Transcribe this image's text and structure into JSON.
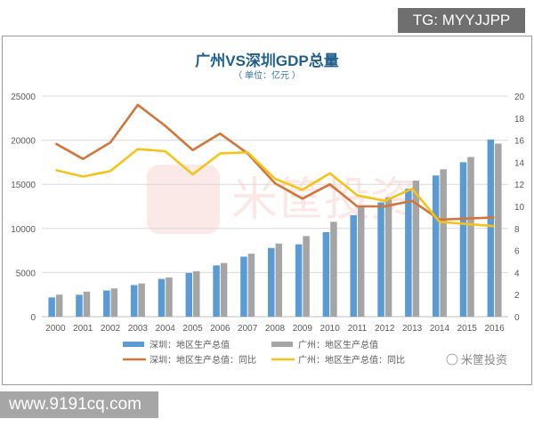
{
  "overlay": {
    "tg_label": "TG: MYYJJPP",
    "site_label": "www.9191cq.com",
    "brand_watermark": "米筐投资"
  },
  "chart_data": {
    "type": "bar+line",
    "title": "广州VS深圳GDP总量",
    "subtitle": "（ 单位：亿元 ）",
    "categories": [
      "2000",
      "2001",
      "2002",
      "2003",
      "2004",
      "2005",
      "2006",
      "2007",
      "2008",
      "2009",
      "2010",
      "2011",
      "2012",
      "2013",
      "2014",
      "2015",
      "2016"
    ],
    "y_left": {
      "range": [
        0,
        25000
      ],
      "ticks": [
        "0",
        "5000",
        "10000",
        "15000",
        "20000",
        "25000"
      ]
    },
    "y_right": {
      "range": [
        0,
        20
      ],
      "ticks": [
        "0",
        "2",
        "4",
        "6",
        "8",
        "10",
        "12",
        "14",
        "16",
        "18",
        "20"
      ]
    },
    "grid": true,
    "legend_position": "bottom",
    "series": [
      {
        "name": "深圳：地区生产总值",
        "kind": "bar",
        "axis": "left",
        "color": "#5b9bd5",
        "values": [
          2187,
          2482,
          2970,
          3586,
          4282,
          4951,
          5814,
          6802,
          7787,
          8201,
          9582,
          11506,
          12950,
          14500,
          16002,
          17503,
          20079
        ]
      },
      {
        "name": "广州：地区生产总值",
        "kind": "bar",
        "axis": "left",
        "color": "#a5a5a5",
        "values": [
          2493,
          2842,
          3203,
          3759,
          4450,
          5154,
          6081,
          7141,
          8287,
          9138,
          10748,
          12423,
          13551,
          15420,
          16707,
          18100,
          19611
        ]
      },
      {
        "name": "深圳：地区生产总值：同比",
        "kind": "line",
        "axis": "right",
        "color": "#d0763a",
        "values": [
          15.7,
          14.3,
          15.8,
          19.2,
          17.3,
          15.1,
          16.6,
          14.8,
          12.1,
          10.7,
          12.0,
          10.0,
          10.0,
          10.5,
          8.8,
          8.9,
          9.0
        ]
      },
      {
        "name": "广州：地区生产总值：同比",
        "kind": "line",
        "axis": "right",
        "color": "#f2c418",
        "values": [
          13.3,
          12.7,
          13.2,
          15.2,
          15.0,
          12.9,
          14.8,
          14.9,
          12.5,
          11.5,
          13.0,
          11.0,
          10.5,
          11.6,
          8.6,
          8.4,
          8.2
        ]
      }
    ]
  }
}
